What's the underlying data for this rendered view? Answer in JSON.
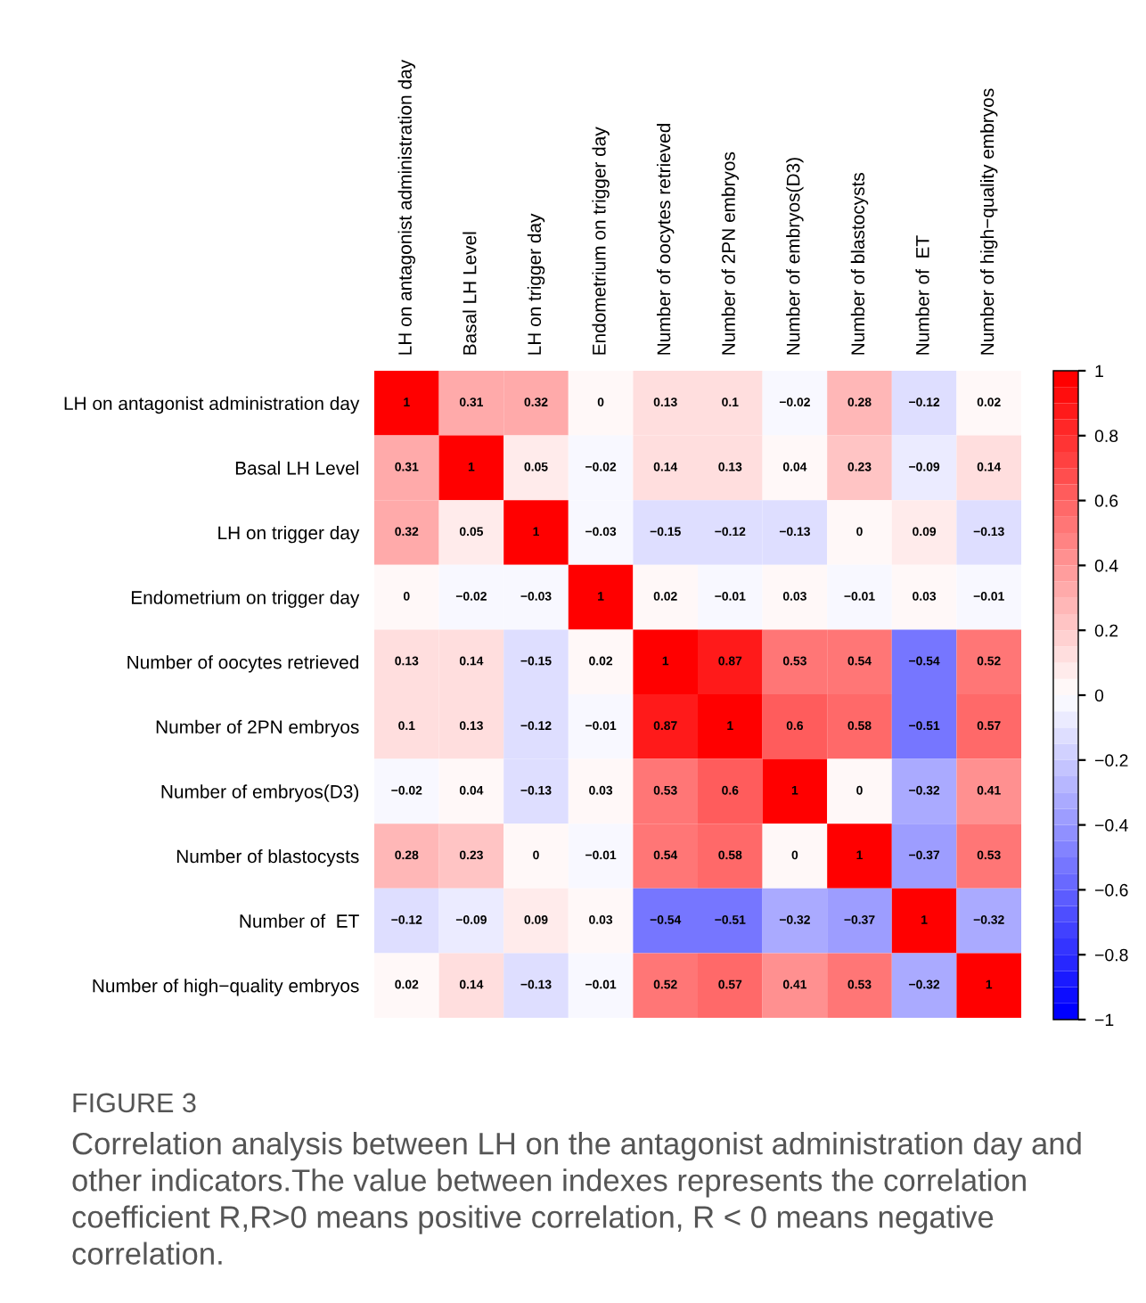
{
  "chart_data": {
    "type": "heatmap",
    "categories": [
      "LH on antagonist administration day",
      "Basal LH Level",
      "LH on trigger day",
      "Endometrium on trigger day",
      "Number of oocytes retrieved",
      "Number of 2PN embryos",
      "Number of embryos(D3)",
      "Number of blastocysts",
      "Number of  ET",
      "Number of high−quality embryos"
    ],
    "y_categories": [
      "LH on antagonist administration day",
      "Basal LH Level",
      "LH on trigger day",
      "Endometrium on trigger day",
      "Number of oocytes retrieved",
      "Number of 2PN embryos",
      "Number of embryos(D3)",
      "Number of blastocysts",
      "Number of  ET",
      "Number of high−quality embryos"
    ],
    "cells": [
      [
        1,
        0.31,
        0.32,
        0,
        0.13,
        0.1,
        -0.02,
        0.28,
        -0.12,
        0.02
      ],
      [
        0.31,
        1,
        0.05,
        -0.02,
        0.14,
        0.13,
        0.04,
        0.23,
        -0.09,
        0.14
      ],
      [
        0.32,
        0.05,
        1,
        -0.03,
        -0.15,
        -0.12,
        -0.13,
        0,
        0.09,
        -0.13
      ],
      [
        0,
        -0.02,
        -0.03,
        1,
        0.02,
        -0.01,
        0.03,
        -0.01,
        0.03,
        -0.01
      ],
      [
        0.13,
        0.14,
        -0.15,
        0.02,
        1,
        0.87,
        0.53,
        0.54,
        -0.54,
        0.52
      ],
      [
        0.1,
        0.13,
        -0.12,
        -0.01,
        0.87,
        1,
        0.6,
        0.58,
        -0.51,
        0.57
      ],
      [
        -0.02,
        0.04,
        -0.13,
        0.03,
        0.53,
        0.6,
        1,
        0,
        -0.32,
        0.41
      ],
      [
        0.28,
        0.23,
        0,
        -0.01,
        0.54,
        0.58,
        0,
        1,
        -0.37,
        0.53
      ],
      [
        -0.12,
        -0.09,
        0.09,
        0.03,
        -0.54,
        -0.51,
        -0.32,
        -0.37,
        1,
        -0.32
      ],
      [
        0.02,
        0.14,
        -0.13,
        -0.01,
        0.52,
        0.57,
        0.41,
        0.53,
        -0.32,
        1
      ]
    ],
    "cell_labels": [
      [
        "1",
        "0.31",
        "0.32",
        "0",
        "0.13",
        "0.1",
        "−0.02",
        "0.28",
        "−0.12",
        "0.02"
      ],
      [
        "0.31",
        "1",
        "0.05",
        "−0.02",
        "0.14",
        "0.13",
        "0.04",
        "0.23",
        "−0.09",
        "0.14"
      ],
      [
        "0.32",
        "0.05",
        "1",
        "−0.03",
        "−0.15",
        "−0.12",
        "−0.13",
        "0",
        "0.09",
        "−0.13"
      ],
      [
        "0",
        "−0.02",
        "−0.03",
        "1",
        "0.02",
        "−0.01",
        "0.03",
        "−0.01",
        "0.03",
        "−0.01"
      ],
      [
        "0.13",
        "0.14",
        "−0.15",
        "0.02",
        "1",
        "0.87",
        "0.53",
        "0.54",
        "−0.54",
        "0.52"
      ],
      [
        "0.1",
        "0.13",
        "−0.12",
        "−0.01",
        "0.87",
        "1",
        "0.6",
        "0.58",
        "−0.51",
        "0.57"
      ],
      [
        "−0.02",
        "0.04",
        "−0.13",
        "0.03",
        "0.53",
        "0.6",
        "1",
        "0",
        "−0.32",
        "0.41"
      ],
      [
        "0.28",
        "0.23",
        "0",
        "−0.01",
        "0.54",
        "0.58",
        "0",
        "1",
        "−0.37",
        "0.53"
      ],
      [
        "−0.12",
        "−0.09",
        "0.09",
        "0.03",
        "−0.54",
        "−0.51",
        "−0.32",
        "−0.37",
        "1",
        "−0.32"
      ],
      [
        "0.02",
        "0.14",
        "−0.13",
        "−0.01",
        "0.52",
        "0.57",
        "0.41",
        "0.53",
        "−0.32",
        "1"
      ]
    ],
    "clim": [
      -1,
      1
    ],
    "cticks": [
      {
        "value": -1,
        "label": "−1"
      },
      {
        "value": -0.8,
        "label": "−0.8"
      },
      {
        "value": -0.6,
        "label": "−0.6"
      },
      {
        "value": -0.4,
        "label": "−0.4"
      },
      {
        "value": -0.2,
        "label": "−0.2"
      },
      0,
      0.2,
      0.4,
      0.6,
      0.8,
      1
    ],
    "annotations": [
      "FIGURE 3",
      "Correlation analysis between LH on the antagonist administration day and other indicators.The value between indexes represents the correlation coefficient R,R>0 means positive correlation, R < 0 means negative correlation."
    ]
  }
}
